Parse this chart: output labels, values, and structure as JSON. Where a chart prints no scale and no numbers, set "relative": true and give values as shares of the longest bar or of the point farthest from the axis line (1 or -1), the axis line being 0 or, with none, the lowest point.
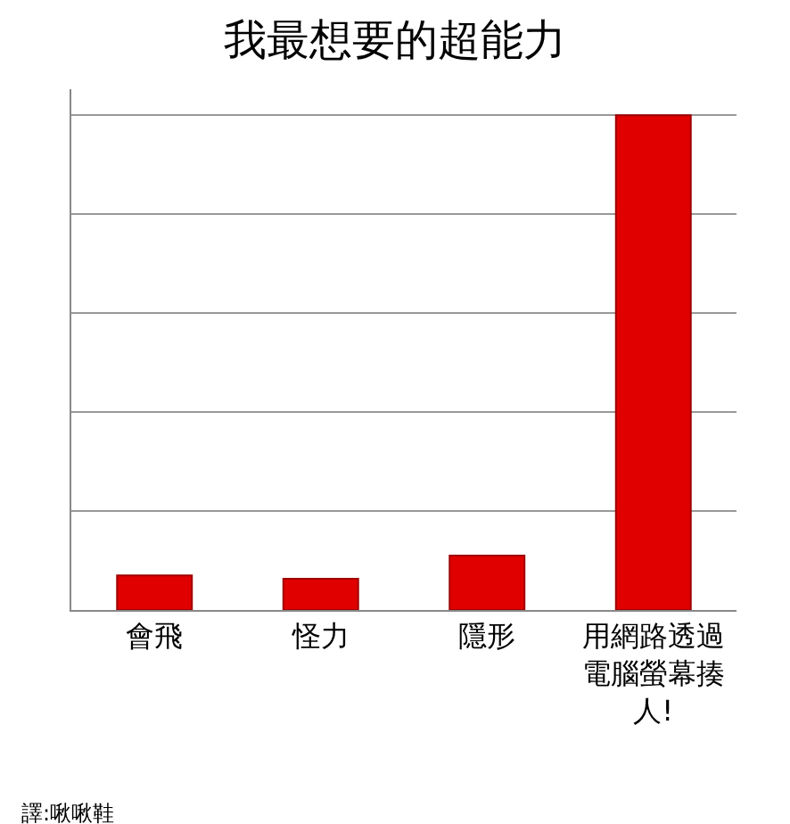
{
  "chart_data": {
    "type": "bar",
    "title": "我最想要的超能力",
    "relative": true,
    "grid": "y",
    "categories": [
      "會飛",
      "怪力",
      "隱形",
      "用網路透過電腦螢幕揍人!"
    ],
    "values": [
      0.07,
      0.063,
      0.11,
      1
    ],
    "color": "#e00000",
    "annotations": [
      "譯:啾啾鞋"
    ]
  }
}
